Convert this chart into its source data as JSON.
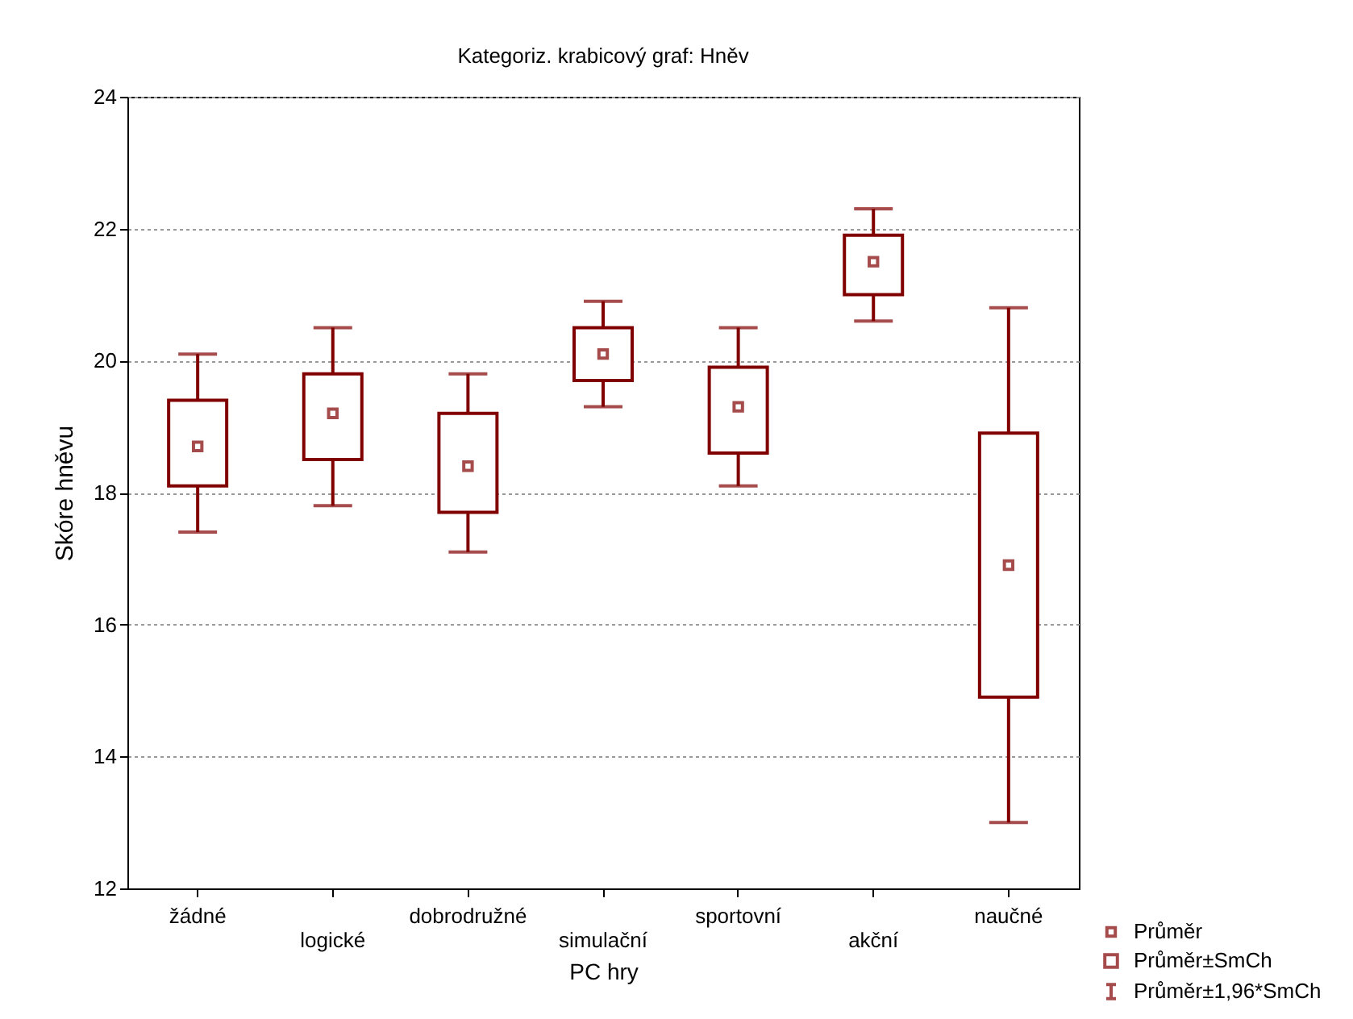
{
  "chart_data": {
    "type": "box",
    "title": "Kategoriz. krabicový graf: Hněv",
    "xlabel": "PC hry",
    "ylabel": "Skóre hněvu",
    "categories": [
      "žádné",
      "logické",
      "dobrodružné",
      "simulační",
      "sportovní",
      "akční",
      "naučné"
    ],
    "color": "#800000",
    "boxes": [
      {
        "low": 17.4,
        "q1": 18.1,
        "median": 18.7,
        "q3": 19.4,
        "high": 20.1
      },
      {
        "low": 17.8,
        "q1": 18.5,
        "median": 19.2,
        "q3": 19.8,
        "high": 20.5
      },
      {
        "low": 17.1,
        "q1": 17.7,
        "median": 18.4,
        "q3": 19.2,
        "high": 19.8
      },
      {
        "low": 19.3,
        "q1": 19.7,
        "median": 20.1,
        "q3": 20.5,
        "high": 20.9
      },
      {
        "low": 18.1,
        "q1": 18.6,
        "median": 19.3,
        "q3": 19.9,
        "high": 20.5
      },
      {
        "low": 20.6,
        "q1": 21.0,
        "median": 21.5,
        "q3": 21.9,
        "high": 22.3
      },
      {
        "low": 13.0,
        "q1": 14.9,
        "median": 16.9,
        "q3": 18.9,
        "high": 20.8
      }
    ],
    "ylim": [
      12,
      24
    ],
    "yticks": [
      12,
      14,
      16,
      18,
      20,
      22,
      24
    ],
    "grid": "y",
    "annotations": [
      "Průměr",
      "Průměr±SmCh",
      "Průměr±1,96*SmCh"
    ]
  }
}
